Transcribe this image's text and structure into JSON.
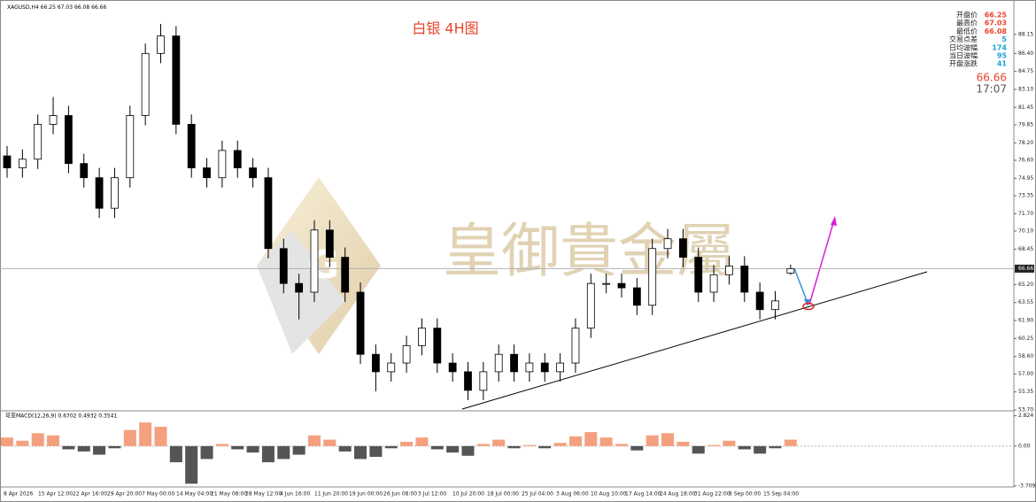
{
  "chart_data": {
    "type": "candlestick",
    "symbol": "XAGUSD,H4",
    "title": "白银 4H图",
    "watermark": "皇御貴金屬",
    "open": [
      77.0,
      75.9,
      76.7,
      79.9,
      80.7,
      76.3,
      75.0,
      72.2,
      75.0,
      80.7,
      86.4,
      88.0,
      79.9,
      75.9,
      75.0,
      77.5,
      75.9,
      75.0,
      68.5,
      65.3,
      64.5,
      70.2,
      67.7,
      64.5,
      58.8,
      57.2,
      58.0,
      59.6,
      61.2,
      58.0,
      57.2,
      55.5,
      57.2,
      58.8,
      57.2,
      58.0,
      57.2,
      58.0,
      61.2,
      65.3,
      65.3,
      64.9,
      63.3,
      68.5,
      69.4,
      67.7,
      64.5,
      66.1,
      66.9,
      64.5,
      62.9,
      66.25
    ],
    "high": [
      77.9,
      77.6,
      80.8,
      82.4,
      81.6,
      77.2,
      75.9,
      75.9,
      81.6,
      87.3,
      89.1,
      88.9,
      80.8,
      76.8,
      78.4,
      78.4,
      76.8,
      75.9,
      69.4,
      66.2,
      71.1,
      71.1,
      68.6,
      65.4,
      59.7,
      58.9,
      60.5,
      62.1,
      62.1,
      58.9,
      58.1,
      58.1,
      59.7,
      59.7,
      58.9,
      58.9,
      58.9,
      62.1,
      66.2,
      66.2,
      66.2,
      65.8,
      69.4,
      70.3,
      70.3,
      68.6,
      67.0,
      67.8,
      67.8,
      65.4,
      64.6,
      67.03
    ],
    "low": [
      75.0,
      75.0,
      75.8,
      79.0,
      75.4,
      74.1,
      71.3,
      71.3,
      74.1,
      79.8,
      85.5,
      79.0,
      75.0,
      74.1,
      74.1,
      75.0,
      74.1,
      67.6,
      64.4,
      62.0,
      63.6,
      66.8,
      63.6,
      57.9,
      55.4,
      56.3,
      57.1,
      58.7,
      57.1,
      56.3,
      54.6,
      54.6,
      56.3,
      56.3,
      56.3,
      56.3,
      56.3,
      57.1,
      60.3,
      64.4,
      64.0,
      62.4,
      62.4,
      67.6,
      66.8,
      63.6,
      63.6,
      65.2,
      63.6,
      62.0,
      62.0,
      66.08
    ],
    "close": [
      75.9,
      76.7,
      79.9,
      80.7,
      76.3,
      75.0,
      72.2,
      75.0,
      80.7,
      86.4,
      88.0,
      79.9,
      75.9,
      75.0,
      77.5,
      75.9,
      75.0,
      68.5,
      65.3,
      64.5,
      70.2,
      67.7,
      64.5,
      58.8,
      57.2,
      58.0,
      59.6,
      61.2,
      58.0,
      57.2,
      55.5,
      57.2,
      58.8,
      57.2,
      58.0,
      57.2,
      58.0,
      61.2,
      65.3,
      65.3,
      64.9,
      63.3,
      68.5,
      69.4,
      67.7,
      64.5,
      66.1,
      66.9,
      64.5,
      62.9,
      63.7,
      66.66
    ],
    "up_color": "#ffffff",
    "down_color": "#000000",
    "ylim": [
      53.7,
      91.3
    ],
    "yticks": [
      {
        "value": 88.15,
        "label": "88.15"
      },
      {
        "value": 86.4,
        "label": "86.40"
      },
      {
        "value": 84.75,
        "label": "84.75"
      },
      {
        "value": 83.1,
        "label": "83.10"
      },
      {
        "value": 81.45,
        "label": "81.45"
      },
      {
        "value": 79.85,
        "label": "79.85"
      },
      {
        "value": 78.2,
        "label": "78.20"
      },
      {
        "value": 76.6,
        "label": "76.60"
      },
      {
        "value": 74.95,
        "label": "74.95"
      },
      {
        "value": 73.35,
        "label": "73.35"
      },
      {
        "value": 71.7,
        "label": "71.70"
      },
      {
        "value": 70.1,
        "label": "70.10"
      },
      {
        "value": 68.45,
        "label": "68.45"
      },
      {
        "value": 65.2,
        "label": "65.20"
      },
      {
        "value": 63.55,
        "label": "63.55"
      },
      {
        "value": 61.9,
        "label": "61.90"
      },
      {
        "value": 60.25,
        "label": "60.25"
      },
      {
        "value": 58.6,
        "label": "58.60"
      },
      {
        "value": 57.0,
        "label": "57.00"
      },
      {
        "value": 55.35,
        "label": "55.35"
      },
      {
        "value": 53.7,
        "label": "53.70"
      }
    ],
    "x_labels": [
      "8 Apr 2026",
      "15 Apr 12:00",
      "22 Apr 16:00",
      "29 Apr 20:00",
      "7 May 00:00",
      "14 May 04:00",
      "21 May 08:00",
      "28 May 12:00",
      "4 Jun 16:00",
      "11 Jun 20:00",
      "19 Jun 00:00",
      "26 Jun 08:00",
      "3 Jul 12:00",
      "10 Jul 20:00",
      "18 Jul 00:00",
      "25 Jul 04:00",
      "3 Aug 06:00",
      "10 Aug 10:00",
      "17 Aug 14:00",
      "24 Aug 18:00",
      "31 Aug 22:00",
      "8 Sep 00:00",
      "15 Sep 04:00"
    ],
    "info_labels": [
      "开盘价",
      "最高价",
      "最低价",
      "交易点差",
      "日均波幅",
      "当日波幅",
      "开盘涨跌"
    ],
    "spread": 5,
    "avg_daily_range": 174,
    "daily_range": 95,
    "open_change": 41,
    "time": "17:07",
    "macd": {
      "type": "bar",
      "label": "可变MACD(12,26,9) 0.6702 0.4932 0.3541",
      "values": [
        0.8,
        0.5,
        1.2,
        1.0,
        -0.3,
        -0.5,
        -0.8,
        -0.2,
        1.5,
        2.2,
        1.8,
        -1.5,
        -3.5,
        -1.2,
        0.2,
        -0.3,
        -0.6,
        -1.5,
        -1.2,
        -0.8,
        1.0,
        0.6,
        -0.5,
        -1.2,
        -1.0,
        -0.2,
        0.4,
        0.8,
        -0.3,
        -0.6,
        -0.9,
        0.2,
        0.6,
        -0.2,
        0.1,
        -0.2,
        0.3,
        0.9,
        1.3,
        0.8,
        0.2,
        -0.4,
        1.0,
        1.2,
        0.4,
        -0.7,
        0.1,
        0.5,
        -0.3,
        -0.7,
        -0.2,
        0.6
      ],
      "positive_color": "#f4a07e",
      "negative_color": "#555555",
      "ylim": [
        -3.8,
        3.2
      ],
      "yticks": [
        2.824,
        {
          "value": 0,
          "label": "0.00"
        },
        -3.7098
      ]
    }
  }
}
